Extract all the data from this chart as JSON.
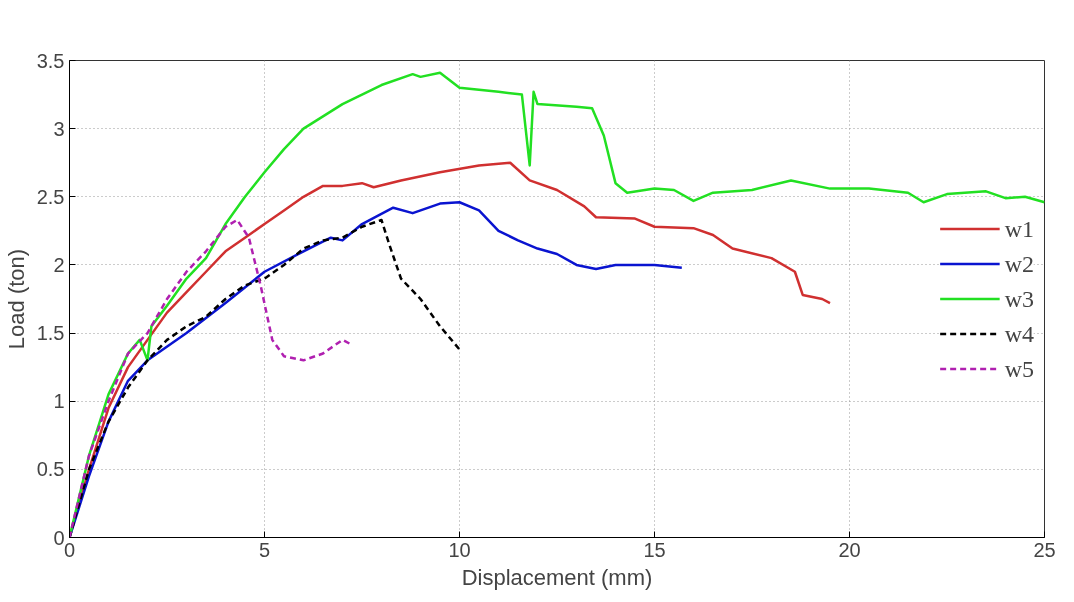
{
  "chart_data": {
    "type": "line",
    "xlabel": "Displacement (mm)",
    "ylabel": "Load (ton)",
    "xlim": [
      0,
      25
    ],
    "ylim": [
      0,
      3.5
    ],
    "xticks": [
      0,
      5,
      10,
      15,
      20,
      25
    ],
    "yticks": [
      0,
      0.5,
      1,
      1.5,
      2,
      2.5,
      3,
      3.5
    ],
    "grid": true,
    "legend": "right",
    "marker": "none",
    "series": [
      {
        "name": "w1",
        "color": "#d03030",
        "line_style": "solid",
        "x": [
          0,
          0.5,
          1,
          1.5,
          2,
          2.5,
          3,
          3.5,
          4,
          4.5,
          5,
          5.5,
          6,
          6.5,
          7,
          7.5,
          7.8,
          8.5,
          9.5,
          10.5,
          11.3,
          11.8,
          12.5,
          13.2,
          13.5,
          14.5,
          15,
          16,
          16.5,
          17,
          18,
          18.6,
          18.8,
          19.3,
          19.5
        ],
        "values": [
          0,
          0.5,
          0.95,
          1.25,
          1.45,
          1.65,
          1.8,
          1.95,
          2.1,
          2.2,
          2.3,
          2.4,
          2.5,
          2.58,
          2.58,
          2.6,
          2.57,
          2.62,
          2.68,
          2.73,
          2.75,
          2.62,
          2.55,
          2.43,
          2.35,
          2.34,
          2.28,
          2.27,
          2.22,
          2.12,
          2.05,
          1.95,
          1.78,
          1.75,
          1.72
        ]
      },
      {
        "name": "w2",
        "color": "#0a14d0",
        "line_style": "solid",
        "x": [
          0,
          0.5,
          1,
          1.5,
          2,
          3,
          4,
          5,
          6,
          6.7,
          7,
          7.5,
          8.3,
          8.8,
          9.5,
          10,
          10.5,
          11,
          11.5,
          12,
          12.5,
          13,
          13.5,
          14,
          15,
          15.7
        ],
        "values": [
          0,
          0.45,
          0.85,
          1.15,
          1.3,
          1.5,
          1.72,
          1.95,
          2.1,
          2.2,
          2.18,
          2.3,
          2.42,
          2.38,
          2.45,
          2.46,
          2.4,
          2.25,
          2.18,
          2.12,
          2.08,
          2.0,
          1.97,
          2.0,
          2.0,
          1.98
        ]
      },
      {
        "name": "w3",
        "color": "#22e022",
        "line_style": "solid",
        "x": [
          0,
          0.5,
          1,
          1.5,
          1.8,
          2,
          2.1,
          2.5,
          3,
          3.5,
          4,
          4.5,
          5,
          5.5,
          6,
          7,
          8,
          8.8,
          9,
          9.5,
          10,
          11,
          11.6,
          11.8,
          11.9,
          12,
          13,
          13.4,
          13.7,
          14,
          14.3,
          15,
          15.5,
          16,
          16.5,
          17.5,
          18.5,
          19.5,
          20.5,
          21.5,
          21.9,
          22.5,
          23.5,
          24,
          24.5,
          25
        ],
        "values": [
          0,
          0.6,
          1.05,
          1.35,
          1.45,
          1.3,
          1.55,
          1.7,
          1.9,
          2.05,
          2.3,
          2.5,
          2.68,
          2.85,
          3.0,
          3.18,
          3.32,
          3.4,
          3.38,
          3.41,
          3.3,
          3.27,
          3.25,
          2.73,
          3.27,
          3.18,
          3.16,
          3.15,
          2.95,
          2.6,
          2.53,
          2.56,
          2.55,
          2.47,
          2.53,
          2.55,
          2.62,
          2.56,
          2.56,
          2.53,
          2.46,
          2.52,
          2.54,
          2.49,
          2.5,
          2.46
        ]
      },
      {
        "name": "w4",
        "color": "#000000",
        "line_style": "dashed",
        "x": [
          0,
          0.5,
          1,
          1.5,
          2,
          2.5,
          3,
          3.5,
          4,
          4.5,
          5,
          5.5,
          6,
          6.5,
          7,
          7.5,
          8,
          8.2,
          8.5,
          9,
          9.5,
          10
        ],
        "values": [
          0,
          0.5,
          0.85,
          1.1,
          1.3,
          1.45,
          1.55,
          1.62,
          1.75,
          1.85,
          1.9,
          2.0,
          2.12,
          2.18,
          2.2,
          2.28,
          2.33,
          2.15,
          1.9,
          1.75,
          1.55,
          1.38
        ]
      },
      {
        "name": "w5",
        "color": "#b020b0",
        "line_style": "dashed",
        "x": [
          0,
          0.5,
          1,
          1.5,
          2,
          2.5,
          3,
          3.5,
          4,
          4.3,
          4.6,
          4.9,
          5.2,
          5.5,
          6,
          6.5,
          7,
          7.2
        ],
        "values": [
          0,
          0.6,
          1.0,
          1.35,
          1.5,
          1.75,
          1.95,
          2.1,
          2.28,
          2.33,
          2.2,
          1.85,
          1.45,
          1.33,
          1.3,
          1.35,
          1.45,
          1.42
        ]
      }
    ]
  }
}
